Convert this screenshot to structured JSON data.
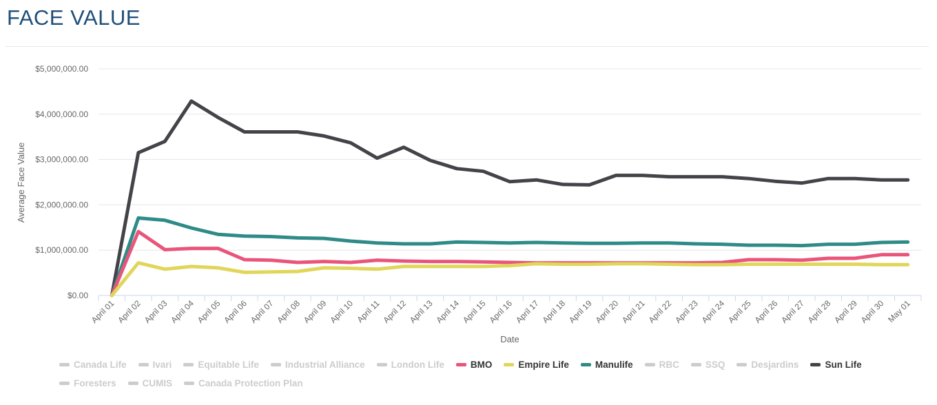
{
  "page": {
    "title": "FACE VALUE"
  },
  "chart_data": {
    "type": "line",
    "title": "",
    "xlabel": "Date",
    "ylabel": "Average Face Value",
    "ylim": [
      0,
      5000000
    ],
    "yticks": [
      "$0.00",
      "$1,000,000.00",
      "$2,000,000.00",
      "$3,000,000.00",
      "$4,000,000.00",
      "$5,000,000.00"
    ],
    "grid": true,
    "legend_position": "bottom",
    "categories": [
      "April 01",
      "April 02",
      "April 03",
      "April 04",
      "April 05",
      "April 06",
      "April 07",
      "April 08",
      "April 09",
      "April 10",
      "April 11",
      "April 12",
      "April 13",
      "April 14",
      "April 15",
      "April 16",
      "April 17",
      "April 18",
      "April 19",
      "April 20",
      "April 21",
      "April 22",
      "April 23",
      "April 24",
      "April 25",
      "April 26",
      "April 27",
      "April 28",
      "April 29",
      "April 30",
      "May 01"
    ],
    "series": [
      {
        "name": "Sun Life",
        "color": "#434348",
        "values": [
          0,
          3150000,
          3400000,
          4290000,
          3930000,
          3610000,
          3610000,
          3610000,
          3520000,
          3370000,
          3030000,
          3270000,
          2980000,
          2800000,
          2740000,
          2510000,
          2550000,
          2450000,
          2440000,
          2650000,
          2650000,
          2620000,
          2620000,
          2620000,
          2580000,
          2520000,
          2480000,
          2580000,
          2580000,
          2550000,
          2550000
        ]
      },
      {
        "name": "Manulife",
        "color": "#2e8b87",
        "values": [
          0,
          1710000,
          1660000,
          1490000,
          1350000,
          1310000,
          1300000,
          1270000,
          1260000,
          1200000,
          1160000,
          1140000,
          1140000,
          1180000,
          1170000,
          1160000,
          1170000,
          1160000,
          1150000,
          1150000,
          1160000,
          1160000,
          1140000,
          1130000,
          1110000,
          1110000,
          1100000,
          1130000,
          1130000,
          1170000,
          1180000
        ]
      },
      {
        "name": "BMO",
        "color": "#e9557a",
        "values": [
          0,
          1410000,
          1010000,
          1040000,
          1040000,
          790000,
          780000,
          730000,
          750000,
          730000,
          780000,
          760000,
          750000,
          750000,
          740000,
          730000,
          720000,
          720000,
          720000,
          720000,
          720000,
          720000,
          720000,
          730000,
          790000,
          790000,
          780000,
          820000,
          820000,
          900000,
          900000
        ]
      },
      {
        "name": "Empire Life",
        "color": "#e0d65a",
        "values": [
          0,
          720000,
          580000,
          640000,
          610000,
          510000,
          520000,
          530000,
          610000,
          600000,
          580000,
          640000,
          640000,
          640000,
          640000,
          660000,
          700000,
          690000,
          690000,
          700000,
          700000,
          690000,
          680000,
          680000,
          690000,
          690000,
          690000,
          690000,
          690000,
          680000,
          680000
        ]
      }
    ]
  },
  "legend": [
    {
      "name": "Canada Life",
      "color": "#cccccc",
      "active": false
    },
    {
      "name": "Ivari",
      "color": "#cccccc",
      "active": false
    },
    {
      "name": "Equitable Life",
      "color": "#cccccc",
      "active": false
    },
    {
      "name": "Industrial Alliance",
      "color": "#cccccc",
      "active": false
    },
    {
      "name": "London Life",
      "color": "#cccccc",
      "active": false
    },
    {
      "name": "BMO",
      "color": "#e9557a",
      "active": true
    },
    {
      "name": "Empire Life",
      "color": "#e0d65a",
      "active": true
    },
    {
      "name": "Manulife",
      "color": "#2e8b87",
      "active": true
    },
    {
      "name": "RBC",
      "color": "#cccccc",
      "active": false
    },
    {
      "name": "SSQ",
      "color": "#cccccc",
      "active": false
    },
    {
      "name": "Desjardins",
      "color": "#cccccc",
      "active": false
    },
    {
      "name": "Sun Life",
      "color": "#434348",
      "active": true
    },
    {
      "name": "Foresters",
      "color": "#cccccc",
      "active": false
    },
    {
      "name": "CUMIS",
      "color": "#cccccc",
      "active": false
    },
    {
      "name": "Canada Protection Plan",
      "color": "#cccccc",
      "active": false
    }
  ]
}
